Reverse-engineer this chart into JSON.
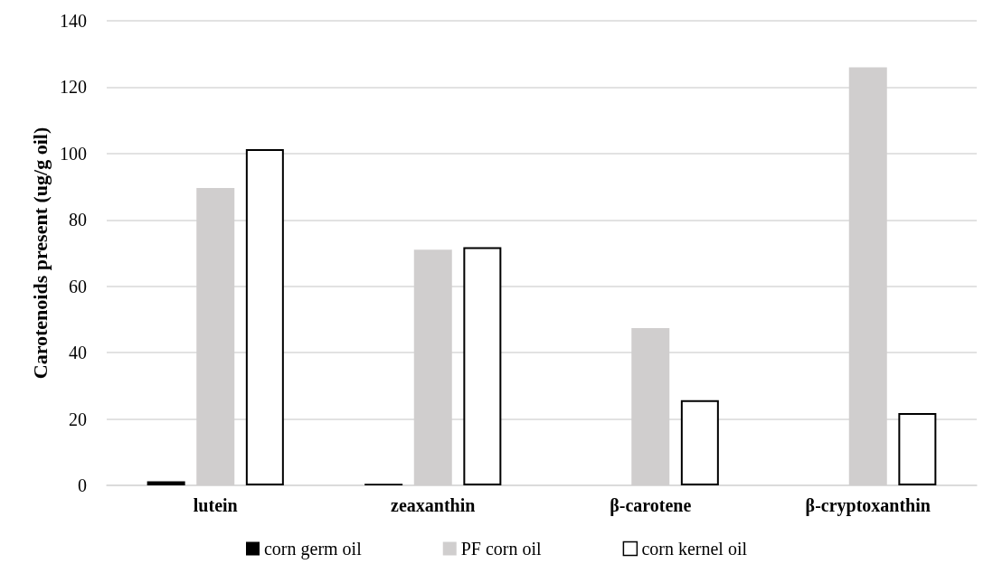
{
  "chart_data": {
    "type": "bar",
    "ylabel": "Carotenoids present (ug/g oil)",
    "categories": [
      "lutein",
      "zeaxanthin",
      "β-carotene",
      "β-cryptoxanthin"
    ],
    "series": [
      {
        "name": "corn germ oil",
        "color": "#000000",
        "values": [
          1.2,
          0.5,
          0,
          0
        ]
      },
      {
        "name": "PF corn oil",
        "color": "#d0cece",
        "values": [
          89.6,
          71,
          47.4,
          126
        ]
      },
      {
        "name": "corn kernel oil",
        "color": "#ffffff",
        "values": [
          101.3,
          71.8,
          25.7,
          21.8
        ]
      }
    ],
    "ylim": [
      0,
      140
    ],
    "yticks": [
      0,
      20,
      40,
      60,
      80,
      100,
      120,
      140
    ],
    "grid": "y",
    "legend": "bottom"
  }
}
